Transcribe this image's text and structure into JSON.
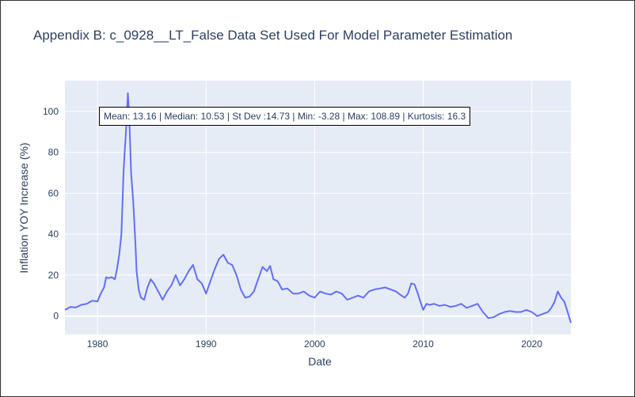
{
  "title": "Appendix B: c_0928__LT_False Data Set Used For Model Parameter Estimation",
  "annotation": "Mean: 13.16 | Median: 10.53 | St Dev :14.73 | Min: -3.28 | Max: 108.89 | Kurtosis: 16.3",
  "colors": {
    "plot_background": "#e5ecf6",
    "grid": "#ffffff",
    "line": "#636efa",
    "text": "#2a3f5f"
  },
  "chart_data": {
    "type": "line",
    "title": "Appendix B: c_0928__LT_False Data Set Used For Model Parameter Estimation",
    "xlabel": "Date",
    "ylabel": "Inflation YOY Increase (%)",
    "xlim": [
      1977.0,
      2023.6
    ],
    "ylim": [
      -9,
      115
    ],
    "grid": true,
    "x_ticks": [
      1980,
      1990,
      2000,
      2010,
      2020
    ],
    "y_ticks": [
      0,
      20,
      40,
      60,
      80,
      100
    ],
    "x_tick_labels": [
      "1980",
      "1990",
      "2000",
      "2010",
      "2020"
    ],
    "y_tick_labels": [
      "0",
      "20",
      "40",
      "60",
      "80",
      "100"
    ],
    "series": [
      {
        "points": [
          [
            1977.0,
            3.0
          ],
          [
            1977.5,
            4.5
          ],
          [
            1978.0,
            4.2
          ],
          [
            1978.5,
            5.5
          ],
          [
            1979.0,
            6.0
          ],
          [
            1979.5,
            7.5
          ],
          [
            1980.0,
            7.2
          ],
          [
            1980.3,
            11.0
          ],
          [
            1980.6,
            14.0
          ],
          [
            1980.8,
            19.0
          ],
          [
            1981.0,
            18.5
          ],
          [
            1981.3,
            19.0
          ],
          [
            1981.6,
            18.0
          ],
          [
            1981.8,
            23.0
          ],
          [
            1982.0,
            30.0
          ],
          [
            1982.2,
            40.0
          ],
          [
            1982.3,
            55.0
          ],
          [
            1982.4,
            70.0
          ],
          [
            1982.5,
            80.0
          ],
          [
            1982.6,
            88.0
          ],
          [
            1982.7,
            98.0
          ],
          [
            1982.8,
            108.89
          ],
          [
            1982.9,
            100.0
          ],
          [
            1983.0,
            85.0
          ],
          [
            1983.1,
            70.0
          ],
          [
            1983.3,
            55.0
          ],
          [
            1983.5,
            35.0
          ],
          [
            1983.6,
            22.0
          ],
          [
            1983.8,
            13.0
          ],
          [
            1984.0,
            9.0
          ],
          [
            1984.3,
            8.0
          ],
          [
            1984.6,
            14.0
          ],
          [
            1984.9,
            18.0
          ],
          [
            1985.2,
            16.0
          ],
          [
            1985.6,
            12.0
          ],
          [
            1986.0,
            8.0
          ],
          [
            1986.4,
            12.0
          ],
          [
            1986.8,
            15.0
          ],
          [
            1987.2,
            20.0
          ],
          [
            1987.6,
            15.0
          ],
          [
            1988.0,
            18.0
          ],
          [
            1988.4,
            22.0
          ],
          [
            1988.8,
            25.0
          ],
          [
            1989.2,
            18.0
          ],
          [
            1989.6,
            16.0
          ],
          [
            1990.0,
            11.0
          ],
          [
            1990.4,
            17.0
          ],
          [
            1990.8,
            23.0
          ],
          [
            1991.2,
            28.0
          ],
          [
            1991.6,
            30.0
          ],
          [
            1992.0,
            26.0
          ],
          [
            1992.4,
            25.0
          ],
          [
            1992.8,
            20.0
          ],
          [
            1993.2,
            13.0
          ],
          [
            1993.6,
            9.0
          ],
          [
            1994.0,
            9.5
          ],
          [
            1994.4,
            12.0
          ],
          [
            1994.8,
            18.0
          ],
          [
            1995.2,
            24.0
          ],
          [
            1995.6,
            22.0
          ],
          [
            1995.9,
            24.5
          ],
          [
            1996.2,
            18.0
          ],
          [
            1996.6,
            17.0
          ],
          [
            1997.0,
            13.0
          ],
          [
            1997.5,
            13.5
          ],
          [
            1998.0,
            11.0
          ],
          [
            1998.5,
            11.0
          ],
          [
            1999.0,
            12.0
          ],
          [
            1999.5,
            10.0
          ],
          [
            2000.0,
            9.0
          ],
          [
            2000.5,
            12.0
          ],
          [
            2001.0,
            11.0
          ],
          [
            2001.5,
            10.5
          ],
          [
            2002.0,
            12.0
          ],
          [
            2002.5,
            11.0
          ],
          [
            2003.0,
            8.0
          ],
          [
            2003.5,
            9.0
          ],
          [
            2004.0,
            10.0
          ],
          [
            2004.5,
            9.0
          ],
          [
            2005.0,
            12.0
          ],
          [
            2005.5,
            13.0
          ],
          [
            2006.0,
            13.5
          ],
          [
            2006.5,
            14.0
          ],
          [
            2007.0,
            13.0
          ],
          [
            2007.5,
            12.0
          ],
          [
            2008.0,
            10.0
          ],
          [
            2008.3,
            9.0
          ],
          [
            2008.6,
            11.0
          ],
          [
            2008.9,
            16.0
          ],
          [
            2009.2,
            15.5
          ],
          [
            2009.5,
            11.0
          ],
          [
            2009.8,
            6.0
          ],
          [
            2010.0,
            3.0
          ],
          [
            2010.3,
            6.0
          ],
          [
            2010.6,
            5.5
          ],
          [
            2011.0,
            6.0
          ],
          [
            2011.5,
            5.0
          ],
          [
            2012.0,
            5.5
          ],
          [
            2012.5,
            4.5
          ],
          [
            2013.0,
            5.0
          ],
          [
            2013.5,
            6.0
          ],
          [
            2014.0,
            4.0
          ],
          [
            2014.5,
            5.0
          ],
          [
            2015.0,
            6.0
          ],
          [
            2015.5,
            2.0
          ],
          [
            2016.0,
            -1.0
          ],
          [
            2016.5,
            -0.5
          ],
          [
            2017.0,
            1.0
          ],
          [
            2017.5,
            2.0
          ],
          [
            2018.0,
            2.5
          ],
          [
            2018.5,
            2.0
          ],
          [
            2019.0,
            2.0
          ],
          [
            2019.5,
            3.0
          ],
          [
            2020.0,
            2.0
          ],
          [
            2020.5,
            0.0
          ],
          [
            2021.0,
            1.0
          ],
          [
            2021.5,
            2.0
          ],
          [
            2021.8,
            4.0
          ],
          [
            2022.1,
            7.0
          ],
          [
            2022.4,
            12.0
          ],
          [
            2022.7,
            9.0
          ],
          [
            2023.0,
            7.0
          ],
          [
            2023.3,
            2.0
          ],
          [
            2023.6,
            -3.28
          ]
        ]
      }
    ]
  }
}
